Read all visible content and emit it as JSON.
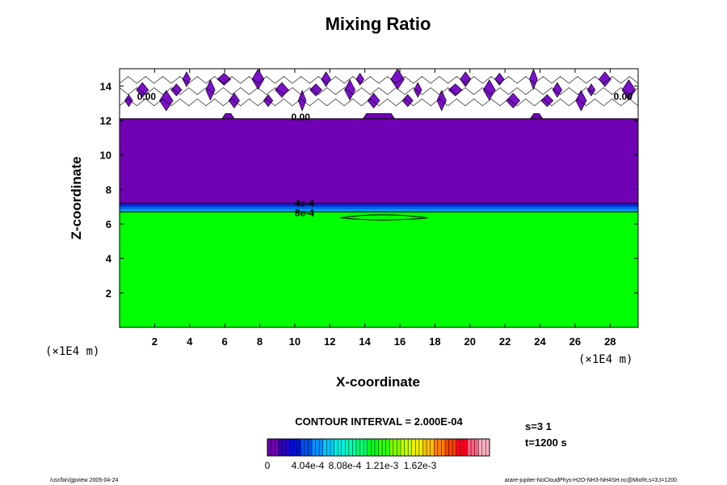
{
  "chart_data": {
    "type": "contour",
    "title": "Mixing Ratio",
    "xlabel": "X-coordinate",
    "ylabel": "Z-coordinate",
    "x_unit": "(×1E4 m)",
    "y_unit": "(×1E4 m)",
    "xlim": [
      0,
      29.6
    ],
    "ylim": [
      0,
      15
    ],
    "x_ticks": [
      2,
      4,
      6,
      8,
      10,
      12,
      14,
      16,
      18,
      20,
      22,
      24,
      26,
      28
    ],
    "y_ticks": [
      2,
      4,
      6,
      8,
      10,
      12,
      14
    ],
    "regions": [
      {
        "z_from": 0,
        "z_to": 6.7,
        "value": 0.0008,
        "color": "#00ff00"
      },
      {
        "z_from": 6.7,
        "z_to": 7.2,
        "value": 0.0004,
        "color": "#0a24c8"
      },
      {
        "z_from": 7.2,
        "z_to": 12.1,
        "value": 0.0,
        "color": "#7000b4"
      },
      {
        "z_from": 12.1,
        "z_to": 15,
        "value": 0.0,
        "color": "#ffffff"
      }
    ],
    "contour_labels": [
      "0.00",
      "0.00",
      "0.00",
      "4e-4",
      "8e-4"
    ],
    "contour_interval": "CONTOUR INTERVAL = 2.000E-04",
    "colorbar_ticks": [
      "0",
      "4.04e-4",
      "8.08e-4",
      "1.21e-3",
      "1.62e-3"
    ],
    "colorbar_colors": [
      "#7000b4",
      "#2c00c8",
      "#0010d8",
      "#0050f0",
      "#0090ff",
      "#00c8ff",
      "#00f0e0",
      "#00ffb0",
      "#00ff70",
      "#00ff20",
      "#30ff00",
      "#80ff00",
      "#c0ff00",
      "#f0f000",
      "#ffc000",
      "#ff8000",
      "#ff4000",
      "#ff0020",
      "#ff6080",
      "#ffb0c0"
    ],
    "info": {
      "s": "s=3 1",
      "t": "t=1200 s"
    },
    "footer_left": "/usr/bin/gpview 2005-04-24",
    "footer_right": "arare-jupiter-NoCloudPhys-H2O-NH3-NH4SH.nc@MixRt,s=3,t=1200"
  }
}
